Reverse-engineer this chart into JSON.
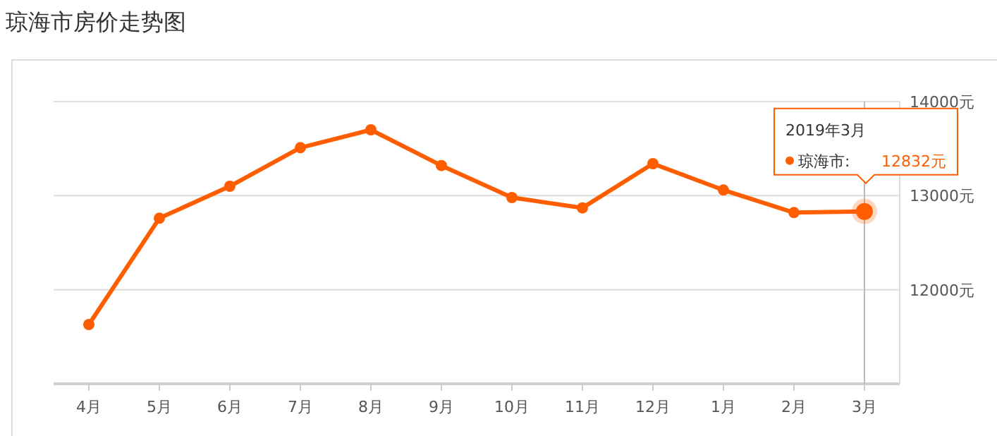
{
  "chart_data": {
    "type": "line",
    "title": "琼海市房价走势图",
    "categories": [
      "4月",
      "5月",
      "6月",
      "7月",
      "8月",
      "9月",
      "10月",
      "11月",
      "12月",
      "1月",
      "2月",
      "3月"
    ],
    "series": [
      {
        "name": "琼海市:",
        "color": "#ff5e00",
        "values": [
          11630,
          12760,
          13100,
          13510,
          13700,
          13320,
          12980,
          12870,
          13340,
          13060,
          12820,
          12832
        ],
        "value_labels": [
          null,
          null,
          null,
          null,
          null,
          null,
          null,
          null,
          null,
          null,
          null,
          "12832元"
        ]
      }
    ],
    "annotations": [
      "2019年3月"
    ],
    "ref_lines": [
      {
        "axis": "x",
        "value": "3月",
        "color": "#bbbbbb"
      }
    ],
    "ylim": [
      11000,
      14000
    ],
    "yticks": [
      {
        "value": 12000,
        "label": "12000元"
      },
      {
        "value": 13000,
        "label": "13000元"
      },
      {
        "value": 14000,
        "label": "14000元"
      }
    ],
    "grid": "y",
    "marker": "circle",
    "legend": "top right",
    "line_style": "solid"
  }
}
